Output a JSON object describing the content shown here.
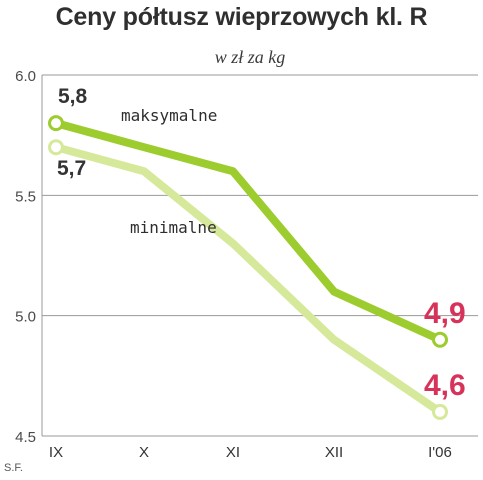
{
  "chart_data": {
    "type": "line",
    "title": "Ceny półtusz wieprzowych kl. R",
    "subtitle": "w zł za kg",
    "categories": [
      "IX",
      "X",
      "XI",
      "XII",
      "I'06"
    ],
    "ylim": [
      4.5,
      6.0
    ],
    "yticks": [
      "6.0",
      "5.5",
      "5.0",
      "4.5"
    ],
    "grid": true,
    "series": [
      {
        "name": "maksymalne",
        "values": [
          5.8,
          5.7,
          5.6,
          5.1,
          4.9
        ],
        "color": "#9ccc2e",
        "start_label": "5,8",
        "end_label": "4,9"
      },
      {
        "name": "minimalne",
        "values": [
          5.7,
          5.6,
          5.3,
          4.9,
          4.6
        ],
        "color": "#d6e99a",
        "start_label": "5,7",
        "end_label": "4,6"
      }
    ],
    "colors": {
      "start_label": "#333333",
      "end_label": "#d7335a"
    },
    "credit": "S.F."
  }
}
